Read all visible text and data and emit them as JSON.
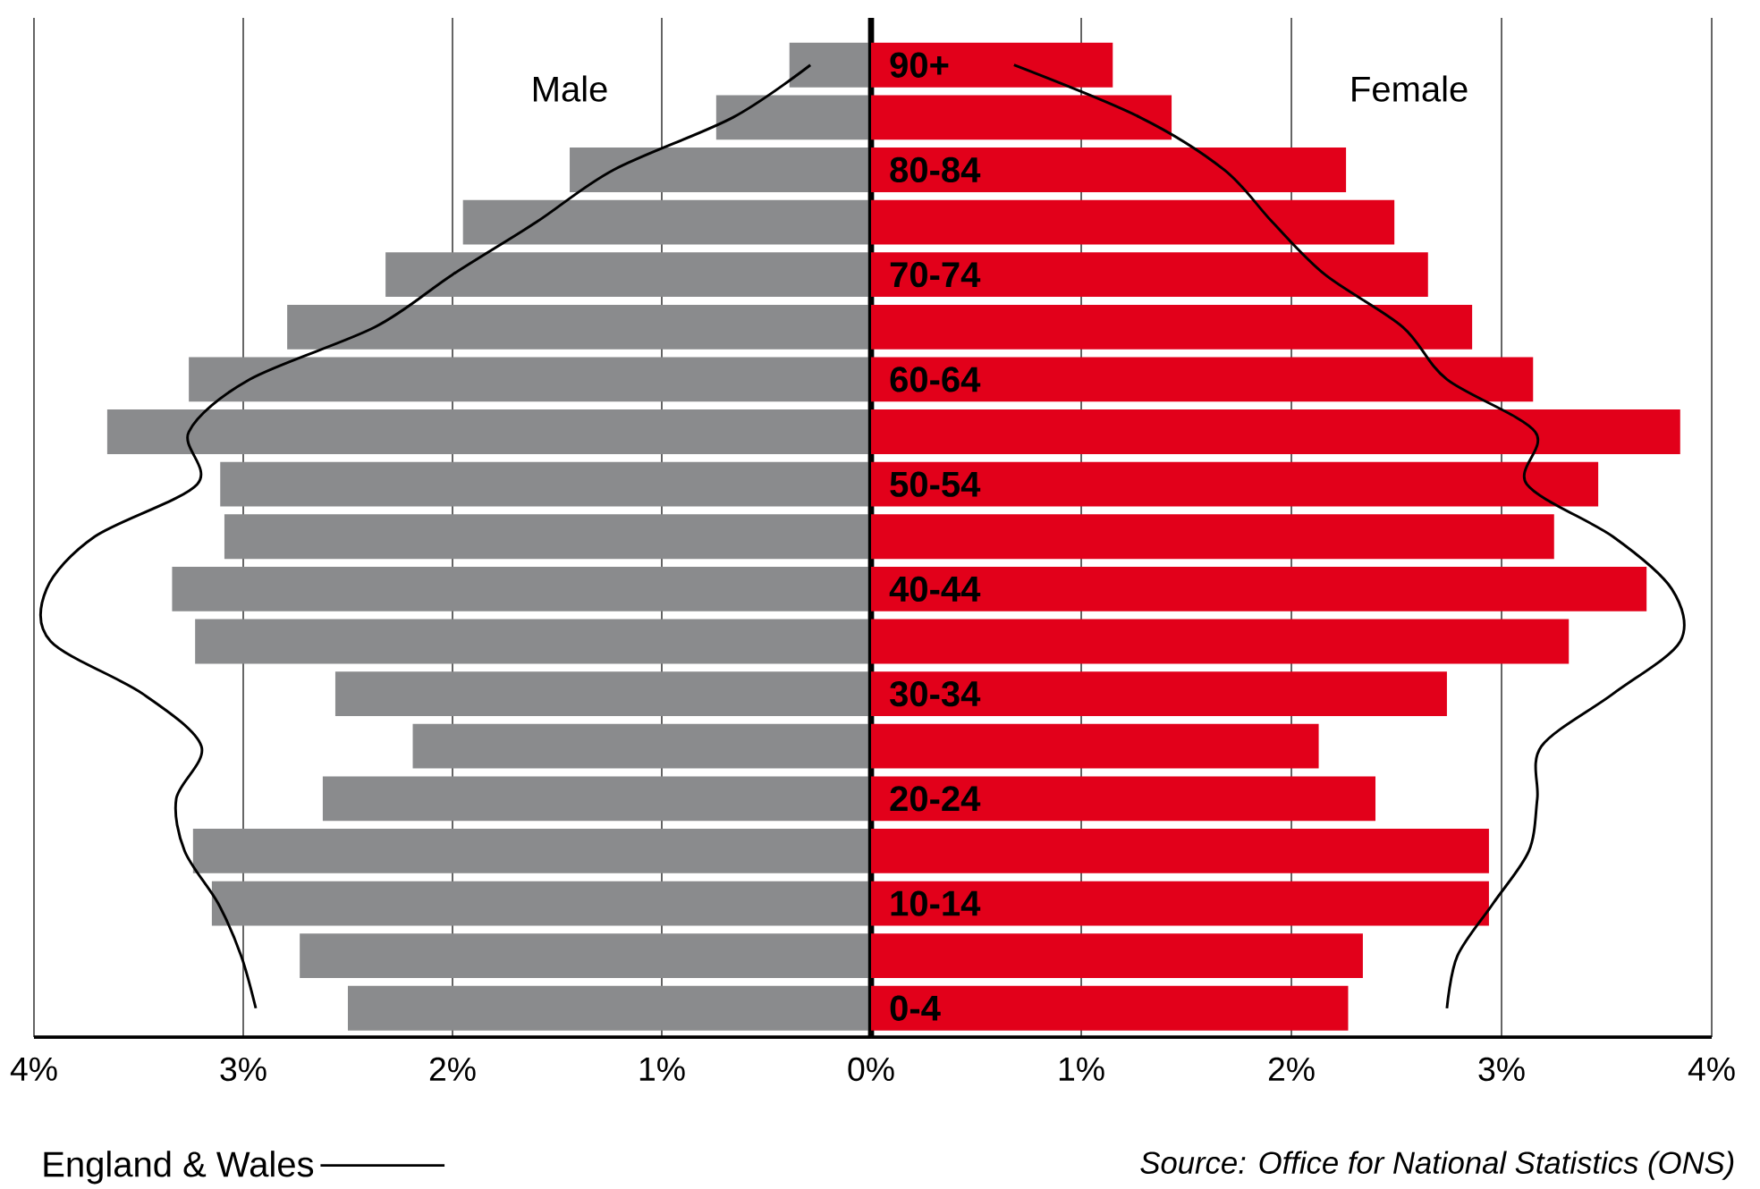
{
  "chart_data": [
    {
      "type": "bar",
      "orientation": "horizontal",
      "categories": [
        null,
        null,
        null,
        null,
        null,
        null,
        null,
        null,
        null,
        null,
        null,
        null,
        null,
        null,
        null,
        null,
        null,
        null,
        null
      ],
      "series": [
        {
          "name": "Male",
          "color": "#8a8b8d",
          "values": [
            0.39,
            0.74,
            1.44,
            1.95,
            2.32,
            2.79,
            3.26,
            3.65,
            3.11,
            3.09,
            3.34,
            3.23,
            2.56,
            2.19,
            2.62,
            3.24,
            3.15,
            2.73,
            2.5
          ]
        },
        {
          "name": "England & Wales",
          "type": "line",
          "color": "#000000",
          "values": [
            0.29,
            0.66,
            1.23,
            1.6,
            2.0,
            2.37,
            2.97,
            3.26,
            3.22,
            3.71,
            3.94,
            3.92,
            3.48,
            3.2,
            3.32,
            3.28,
            3.12,
            3.01,
            2.94
          ]
        }
      ],
      "xlim": [
        4,
        0
      ],
      "xticks": [
        {
          "value": 4,
          "label": "4%"
        },
        {
          "value": 3,
          "label": "3%"
        },
        {
          "value": 2,
          "label": "2%"
        },
        {
          "value": 1,
          "label": "1%"
        },
        {
          "value": 0,
          "label": "0%"
        }
      ],
      "grid": "x",
      "legend": "bottom left"
    },
    {
      "type": "bar",
      "orientation": "horizontal",
      "categories": [
        "90+",
        null,
        "80-84",
        null,
        "70-74",
        null,
        "60-64",
        null,
        "50-54",
        null,
        "40-44",
        null,
        "30-34",
        null,
        "20-24",
        null,
        "10-14",
        null,
        "0-4"
      ],
      "series": [
        {
          "name": "Female",
          "color": "#e2001a",
          "values": [
            1.15,
            1.43,
            2.26,
            2.49,
            2.65,
            2.86,
            3.15,
            3.85,
            3.46,
            3.25,
            3.69,
            3.32,
            2.74,
            2.13,
            2.4,
            2.94,
            2.94,
            2.34,
            2.27
          ]
        },
        {
          "type": "line",
          "color": "#000000",
          "values": [
            0.68,
            1.28,
            1.68,
            1.91,
            2.16,
            2.53,
            2.74,
            3.16,
            3.12,
            3.53,
            3.81,
            3.85,
            3.53,
            3.19,
            3.17,
            3.13,
            2.96,
            2.79,
            2.74
          ]
        }
      ],
      "xlim": [
        0,
        4
      ],
      "xticks": [
        {
          "value": 0,
          "label": null
        },
        {
          "value": 1,
          "label": "1%"
        },
        {
          "value": 2,
          "label": "2%"
        },
        {
          "value": 3,
          "label": "3%"
        },
        {
          "value": 4,
          "label": "4%"
        }
      ],
      "grid": "x",
      "annotations": [
        "Source: Office for National Statistics (ONS)"
      ]
    }
  ]
}
